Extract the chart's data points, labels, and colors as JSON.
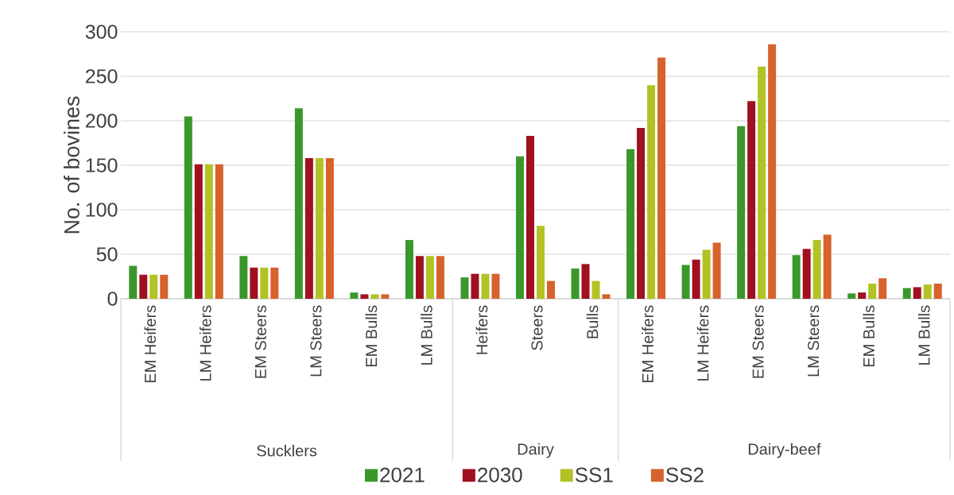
{
  "chart_data": {
    "type": "bar",
    "ylabel": "No. of bovines",
    "categories": [
      "EM Heifers",
      "LM Heifers",
      "EM Steers",
      "LM Steers",
      "EM Bulls",
      "LM Bulls",
      "Heifers",
      "Steers",
      "Bulls",
      "EM Heifers",
      "LM Heifers",
      "EM Steers",
      "LM Steers",
      "EM Bulls",
      "LM Bulls"
    ],
    "series": [
      {
        "name": "2021",
        "color": "#3a982b",
        "values": [
          37,
          205,
          48,
          214,
          7,
          66,
          24,
          160,
          34,
          168,
          38,
          194,
          49,
          6,
          12
        ]
      },
      {
        "name": "2030",
        "color": "#a01020",
        "values": [
          27,
          151,
          35,
          158,
          5,
          48,
          28,
          183,
          39,
          192,
          44,
          222,
          56,
          7,
          13
        ]
      },
      {
        "name": "SS1",
        "color": "#b2c225",
        "values": [
          27,
          151,
          35,
          158,
          5,
          48,
          28,
          82,
          20,
          240,
          55,
          261,
          66,
          17,
          16
        ]
      },
      {
        "name": "SS2",
        "color": "#d6622d",
        "values": [
          27,
          151,
          35,
          158,
          5,
          48,
          28,
          20,
          5,
          271,
          63,
          286,
          72,
          23,
          17
        ]
      }
    ],
    "annotations": [
      "Sucklers",
      "Dairy",
      "Dairy-beef"
    ],
    "ylim": [
      0,
      300
    ],
    "yticks": [
      0,
      50,
      100,
      150,
      200,
      250,
      300
    ],
    "grid": "y",
    "legend": "bottom"
  }
}
